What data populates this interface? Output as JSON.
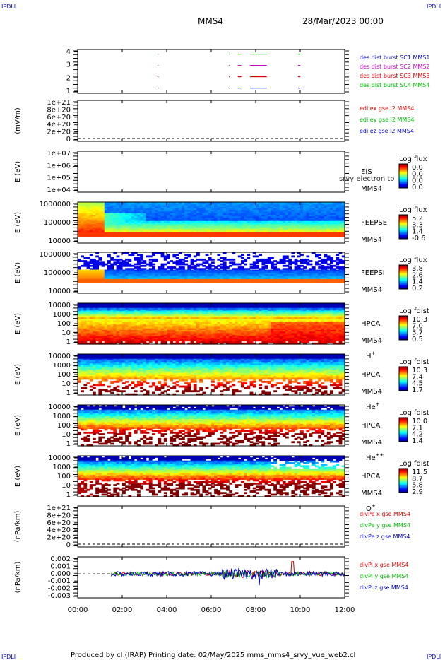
{
  "corner_label": "IPDLI",
  "header": {
    "spacecraft": "MMS4",
    "date": "28/Mar/2023 00:00"
  },
  "footer": "Produced by cl (IRAP)    Printing date: 02/May/2025    mms_mms4_srvy_vue_web2.cl",
  "colors": {
    "red": "#dd0000",
    "green": "#00bb00",
    "blue": "#0000cc",
    "magenta": "#cc00cc"
  },
  "chart_data": {
    "type": "heatmap",
    "x_ticks": [
      "00:00",
      "02:00",
      "04:00",
      "06:00",
      "08:00",
      "10:00",
      "12:00"
    ],
    "xlim_hours": [
      0,
      12
    ],
    "panels": [
      {
        "id": "burst",
        "type": "scatter",
        "yticks": [
          "4",
          "3",
          "2",
          "1"
        ],
        "legend": [
          {
            "text": "des dist burst SC1 MMS1",
            "color": "blue"
          },
          {
            "text": "des dist burst SC2 MMS2",
            "color": "magenta"
          },
          {
            "text": "des dist burst SC3 MMS3",
            "color": "red"
          },
          {
            "text": "des dist burst SC4 MMS4",
            "color": "green"
          }
        ],
        "intervals_hours": [
          [
            3.6,
            3.62
          ],
          [
            6.8,
            6.82
          ],
          [
            7.2,
            7.35
          ],
          [
            7.75,
            8.5
          ],
          [
            9.9,
            10.0
          ]
        ]
      },
      {
        "id": "edi",
        "type": "line",
        "ylabel": "(mV/m)",
        "yticks": [
          "1e+21",
          "8e+20",
          "6e+20",
          "4e+20",
          "2e+20",
          "0"
        ],
        "legend": [
          {
            "text": "edi ex gse l2 MMS4",
            "color": "red"
          },
          {
            "text": "edi ey gse l2 MMS4",
            "color": "green"
          },
          {
            "text": "edi ez gse l2 MMS4",
            "color": "blue"
          }
        ]
      },
      {
        "id": "eis",
        "type": "heatmap",
        "ylabel": "E (eV)",
        "yticks": [
          "1e+07",
          "1e+06",
          "1e+05",
          "1e+04"
        ],
        "instrument": "EIS",
        "species": "MMS4",
        "overlay": "srvy electron to",
        "cbar_title": "Log flux",
        "cbar_ticks": [
          "0.0",
          "0.0",
          "0.0",
          "0.0"
        ]
      },
      {
        "id": "feepse",
        "type": "heatmap",
        "ylabel": "E (eV)",
        "yticks": [
          "1000000",
          "100000",
          "10000"
        ],
        "instrument": "FEEPSE",
        "species": "MMS4",
        "cbar_title": "Log flux",
        "cbar_ticks": [
          "5.2",
          "3.3",
          "1.4",
          "-0.6"
        ]
      },
      {
        "id": "feepsi",
        "type": "heatmap",
        "ylabel": "E (eV)",
        "yticks": [
          "1000000",
          "100000",
          "10000"
        ],
        "instrument": "FEEPSI",
        "species": "MMS4",
        "cbar_title": "Log flux",
        "cbar_ticks": [
          "3.8",
          "2.6",
          "1.4",
          "0.2"
        ]
      },
      {
        "id": "hpca_h",
        "type": "heatmap",
        "ylabel": "E (eV)",
        "yticks": [
          "10000",
          "1000",
          "100",
          "10",
          "1"
        ],
        "instrument": "HPCA",
        "species": "MMS4",
        "ion": "H",
        "ion_charge": "+",
        "cbar_title": "Log fdist",
        "cbar_ticks": [
          "10.3",
          "7.0",
          "3.7",
          "0.5"
        ]
      },
      {
        "id": "hpca_he",
        "type": "heatmap",
        "ylabel": "E (eV)",
        "yticks": [
          "10000",
          "1000",
          "100",
          "10",
          "1"
        ],
        "instrument": "HPCA",
        "species": "MMS4",
        "ion": "He",
        "ion_charge": "+",
        "cbar_title": "Log fdist",
        "cbar_ticks": [
          "10.3",
          "7.4",
          "4.5",
          "1.7"
        ]
      },
      {
        "id": "hpca_he2",
        "type": "heatmap",
        "ylabel": "E (eV)",
        "yticks": [
          "10000",
          "1000",
          "100",
          "10",
          "1"
        ],
        "instrument": "HPCA",
        "species": "MMS4",
        "ion": "He",
        "ion_charge": "++",
        "cbar_title": "Log fdist",
        "cbar_ticks": [
          "10.0",
          "7.1",
          "4.2",
          "1.4"
        ]
      },
      {
        "id": "hpca_o",
        "type": "heatmap",
        "ylabel": "E (eV)",
        "yticks": [
          "10000",
          "1000",
          "100",
          "10",
          "1"
        ],
        "instrument": "HPCA",
        "species": "MMS4",
        "ion": "O",
        "ion_charge": "+",
        "cbar_title": "Log fdist",
        "cbar_ticks": [
          "11.5",
          "8.7",
          "5.8",
          "2.9"
        ]
      },
      {
        "id": "divpe",
        "type": "line",
        "ylabel": "(nPa/km)",
        "yticks": [
          "1e+21",
          "8e+20",
          "6e+20",
          "4e+20",
          "2e+20",
          "0"
        ],
        "legend": [
          {
            "text": "divPe x gse MMS4",
            "color": "red"
          },
          {
            "text": "divPe y gse MMS4",
            "color": "green"
          },
          {
            "text": "divPe z gse MMS4",
            "color": "blue"
          }
        ]
      },
      {
        "id": "divpi",
        "type": "line",
        "ylabel": "(nPa/km)",
        "yticks": [
          "0.002",
          "0.001",
          "0.000",
          "-0.001",
          "-0.002",
          "-0.003"
        ],
        "ylim": [
          -0.0035,
          0.0025
        ],
        "legend": [
          {
            "text": "divPi x gse MMS4",
            "color": "red"
          },
          {
            "text": "divPi y gse MMS4",
            "color": "green"
          },
          {
            "text": "divPi z gse MMS4",
            "color": "blue"
          }
        ],
        "data_start_hours": 1.5
      }
    ]
  }
}
